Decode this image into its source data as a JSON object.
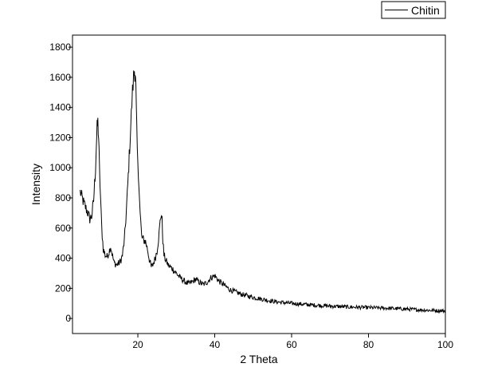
{
  "chart_data": {
    "type": "line",
    "title": "",
    "xlabel": "2 Theta",
    "ylabel": "Intensity",
    "xlim": [
      3,
      100
    ],
    "ylim": [
      -100,
      1880
    ],
    "x_ticks": [
      20,
      40,
      60,
      80,
      100
    ],
    "y_ticks": [
      0,
      200,
      400,
      600,
      800,
      1000,
      1200,
      1400,
      1600,
      1800
    ],
    "grid": false,
    "legend": {
      "position": "top-right-outside"
    },
    "series": [
      {
        "name": "Chitin",
        "color": "#000000",
        "x": [
          5,
          6,
          7,
          7.5,
          8,
          8.5,
          9,
          9.2,
          9.4,
          9.6,
          9.8,
          10,
          10.3,
          10.6,
          11,
          11.5,
          12,
          12.5,
          12.9,
          13.3,
          13.8,
          14.5,
          15,
          15.5,
          16,
          16.5,
          17,
          17.5,
          18,
          18.3,
          18.6,
          18.9,
          19.1,
          19.3,
          19.5,
          19.7,
          20,
          20.3,
          20.6,
          21,
          21.5,
          22,
          22.5,
          23,
          23.5,
          24,
          24.5,
          25,
          25.5,
          25.8,
          26.1,
          26.3,
          26.5,
          26.8,
          27.2,
          28,
          29,
          30,
          31,
          32,
          33,
          34,
          35,
          36,
          37,
          38,
          39,
          40,
          41,
          42,
          43,
          44,
          45,
          47,
          50,
          53,
          56,
          60,
          65,
          70,
          75,
          80,
          85,
          90,
          95,
          100
        ],
        "y": [
          840,
          760,
          700,
          660,
          680,
          780,
          1000,
          1150,
          1260,
          1300,
          1200,
          1000,
          800,
          600,
          460,
          420,
          410,
          440,
          480,
          430,
          370,
          355,
          365,
          380,
          420,
          520,
          700,
          950,
          1200,
          1350,
          1500,
          1600,
          1650,
          1640,
          1500,
          1250,
          1000,
          900,
          700,
          540,
          520,
          510,
          460,
          390,
          340,
          360,
          400,
          450,
          560,
          640,
          700,
          650,
          520,
          420,
          390,
          350,
          330,
          300,
          270,
          250,
          230,
          240,
          260,
          240,
          225,
          240,
          270,
          285,
          250,
          230,
          210,
          190,
          180,
          160,
          140,
          125,
          110,
          100,
          90,
          82,
          76,
          72,
          68,
          62,
          55,
          50
        ]
      }
    ]
  }
}
